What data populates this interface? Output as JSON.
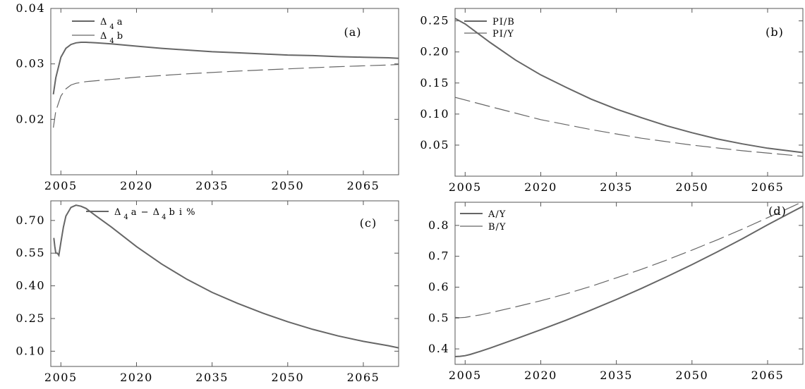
{
  "chart_data": [
    {
      "type": "line",
      "panel_label": "(a)",
      "xlim": [
        2003,
        2072
      ],
      "ylim": [
        0.01,
        0.04
      ],
      "x_ticks": [
        "2005",
        "2020",
        "2035",
        "2050",
        "2065"
      ],
      "y_ticks": [
        "0.04",
        "0.03",
        "0.02"
      ],
      "legend": [
        {
          "base": "Δ",
          "sub": "4",
          "tail": "a"
        },
        {
          "base": "Δ",
          "sub": "4",
          "tail": "b"
        }
      ],
      "series": [
        {
          "name": "Δ4a",
          "style": "solid",
          "color": "#666666",
          "x": [
            2003.5,
            2004,
            2005,
            2006,
            2007,
            2008,
            2009,
            2010,
            2012,
            2015,
            2020,
            2025,
            2030,
            2035,
            2040,
            2045,
            2050,
            2055,
            2060,
            2065,
            2070,
            2072
          ],
          "y": [
            0.0245,
            0.0275,
            0.0312,
            0.0328,
            0.0335,
            0.0338,
            0.0339,
            0.0339,
            0.0338,
            0.0336,
            0.0332,
            0.0328,
            0.0325,
            0.0322,
            0.032,
            0.0318,
            0.0316,
            0.0315,
            0.0313,
            0.0312,
            0.0311,
            0.031
          ]
        },
        {
          "name": "Δ4b",
          "style": "dashed",
          "color": "#666666",
          "x": [
            2003.5,
            2004,
            2005,
            2006,
            2007,
            2008,
            2010,
            2015,
            2020,
            2030,
            2040,
            2050,
            2060,
            2070,
            2072
          ],
          "y": [
            0.0185,
            0.0215,
            0.0242,
            0.0255,
            0.0262,
            0.0265,
            0.0268,
            0.0272,
            0.0276,
            0.0282,
            0.0287,
            0.0291,
            0.0295,
            0.0298,
            0.0299
          ]
        }
      ]
    },
    {
      "type": "line",
      "panel_label": "(b)",
      "xlim": [
        2003,
        2072
      ],
      "ylim": [
        0.0,
        0.27
      ],
      "x_ticks": [
        "2005",
        "2020",
        "2035",
        "2050",
        "2065"
      ],
      "y_ticks": [
        "0.25",
        "0.20",
        "0.15",
        "0.10",
        "0.05"
      ],
      "legend": [
        {
          "base": "PI/B",
          "sub": "",
          "tail": ""
        },
        {
          "base": "PI/Y",
          "sub": "",
          "tail": ""
        }
      ],
      "series": [
        {
          "name": "PI/B",
          "style": "solid",
          "color": "#666666",
          "x": [
            2003,
            2005,
            2010,
            2015,
            2020,
            2025,
            2030,
            2035,
            2040,
            2045,
            2050,
            2055,
            2060,
            2065,
            2070,
            2072
          ],
          "y": [
            0.254,
            0.245,
            0.215,
            0.187,
            0.163,
            0.143,
            0.124,
            0.108,
            0.094,
            0.081,
            0.07,
            0.06,
            0.052,
            0.045,
            0.04,
            0.038
          ]
        },
        {
          "name": "PI/Y",
          "style": "dashed",
          "color": "#666666",
          "x": [
            2003,
            2010,
            2020,
            2030,
            2040,
            2050,
            2060,
            2072
          ],
          "y": [
            0.127,
            0.112,
            0.091,
            0.075,
            0.061,
            0.05,
            0.041,
            0.032
          ]
        }
      ]
    },
    {
      "type": "line",
      "panel_label": "(c)",
      "xlim": [
        2003,
        2072
      ],
      "ylim": [
        0.03,
        0.79
      ],
      "x_ticks": [
        "2005",
        "2020",
        "2035",
        "2050",
        "2065"
      ],
      "y_ticks": [
        "0.70",
        "0.55",
        "0.40",
        "0.25",
        "0.10"
      ],
      "legend": [
        {
          "base": "Δ",
          "sub": "4",
          "tail": "a − Δ",
          "sub2": "4",
          "tail2": "b  i %"
        }
      ],
      "series": [
        {
          "name": "Δ4a − Δ4b i %",
          "style": "solid",
          "color": "#666666",
          "x": [
            2003.6,
            2003.8,
            2004,
            2004.3,
            2004.6,
            2005,
            2005.5,
            2006,
            2007,
            2008,
            2009,
            2010,
            2012,
            2015,
            2020,
            2025,
            2030,
            2035,
            2040,
            2045,
            2050,
            2055,
            2060,
            2065,
            2070,
            2072
          ],
          "y": [
            0.62,
            0.58,
            0.55,
            0.55,
            0.54,
            0.6,
            0.67,
            0.72,
            0.76,
            0.77,
            0.765,
            0.755,
            0.72,
            0.67,
            0.58,
            0.5,
            0.43,
            0.37,
            0.32,
            0.275,
            0.235,
            0.2,
            0.17,
            0.145,
            0.125,
            0.115
          ]
        }
      ]
    },
    {
      "type": "line",
      "panel_label": "(d)",
      "xlim": [
        2003,
        2072
      ],
      "ylim": [
        0.35,
        0.875
      ],
      "x_ticks": [
        "2005",
        "2020",
        "2035",
        "2050",
        "2065"
      ],
      "y_ticks": [
        "0.8",
        "0.7",
        "0.6",
        "0.5",
        "0.4"
      ],
      "legend": [
        {
          "base": "A/Y",
          "sub": "",
          "tail": ""
        },
        {
          "base": "B/Y",
          "sub": "",
          "tail": ""
        }
      ],
      "series": [
        {
          "name": "A/Y",
          "style": "solid",
          "color": "#666666",
          "x": [
            2003,
            2004,
            2005,
            2006,
            2008,
            2010,
            2015,
            2020,
            2025,
            2030,
            2035,
            2040,
            2045,
            2050,
            2055,
            2060,
            2065,
            2070,
            2072
          ],
          "y": [
            0.375,
            0.376,
            0.378,
            0.382,
            0.392,
            0.403,
            0.432,
            0.462,
            0.493,
            0.526,
            0.56,
            0.596,
            0.634,
            0.673,
            0.714,
            0.757,
            0.802,
            0.845,
            0.862
          ]
        },
        {
          "name": "B/Y",
          "style": "dashed",
          "color": "#666666",
          "x": [
            2003,
            2004,
            2005,
            2006,
            2008,
            2010,
            2015,
            2020,
            2025,
            2030,
            2035,
            2040,
            2045,
            2050,
            2055,
            2060,
            2065,
            2070,
            2072
          ],
          "y": [
            0.502,
            0.501,
            0.502,
            0.505,
            0.51,
            0.517,
            0.536,
            0.556,
            0.578,
            0.603,
            0.63,
            0.658,
            0.688,
            0.72,
            0.753,
            0.788,
            0.825,
            0.862,
            0.877
          ]
        }
      ]
    }
  ]
}
